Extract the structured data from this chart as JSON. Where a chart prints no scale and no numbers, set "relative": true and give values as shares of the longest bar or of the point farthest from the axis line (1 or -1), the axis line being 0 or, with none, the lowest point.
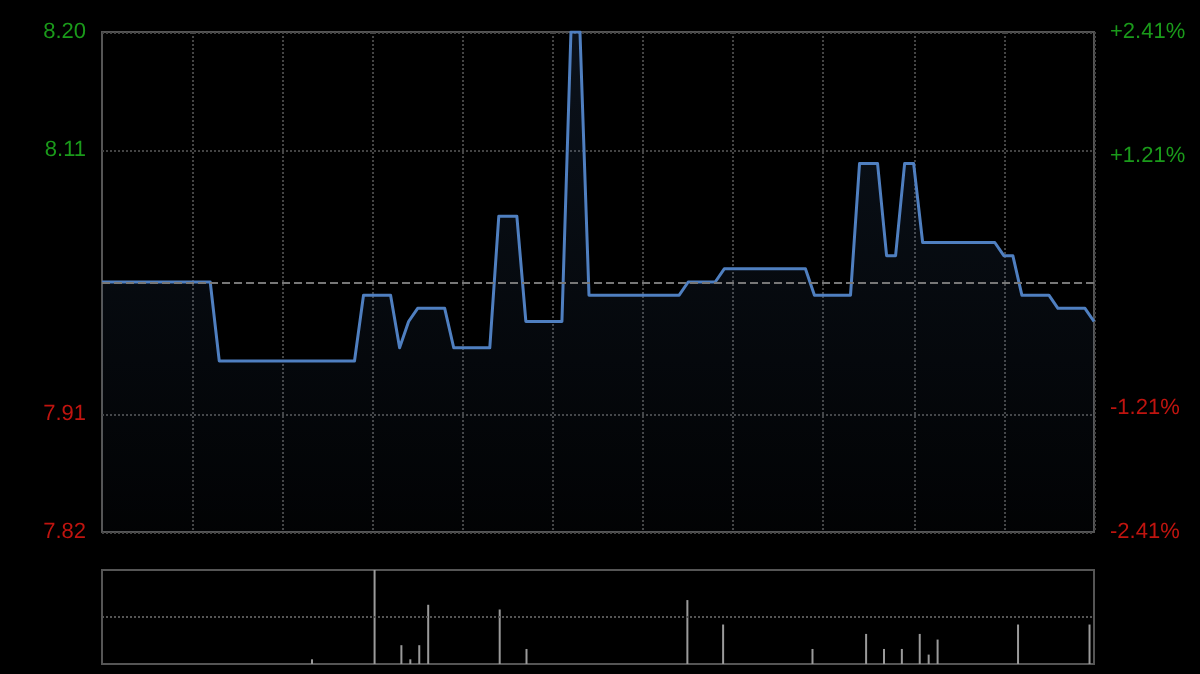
{
  "chart_data": [
    {
      "type": "area",
      "categories": [
        null,
        null,
        null,
        null,
        null,
        null,
        null,
        null,
        null,
        null,
        null,
        null,
        null,
        null,
        null,
        null,
        null,
        null,
        null,
        null,
        null,
        null,
        null,
        null,
        null,
        null,
        null,
        null,
        null,
        null,
        null,
        null,
        null,
        null,
        null,
        null,
        null,
        null,
        null,
        null,
        null,
        null,
        null,
        null,
        null,
        null,
        null,
        null,
        null,
        null,
        null,
        null,
        null,
        null,
        null,
        null,
        null,
        null,
        null,
        null,
        null,
        null,
        null,
        null,
        null,
        null,
        null,
        null,
        null,
        null,
        null,
        null,
        null,
        null,
        null,
        null,
        null,
        null,
        null,
        null,
        null,
        null,
        null,
        null,
        null,
        null,
        null,
        null,
        null,
        null,
        null,
        null,
        null,
        null,
        null,
        null,
        null,
        null,
        null,
        null,
        null,
        null,
        null,
        null,
        null,
        null,
        null,
        null,
        null,
        null,
        null
      ],
      "series": [
        {
          "color": "#4f7fc0",
          "values": [
            8.01,
            8.01,
            8.01,
            8.01,
            8.01,
            8.01,
            8.01,
            8.01,
            8.01,
            8.01,
            8.01,
            8.01,
            8.01,
            7.95,
            7.95,
            7.95,
            7.95,
            7.95,
            7.95,
            7.95,
            7.95,
            7.95,
            7.95,
            7.95,
            7.95,
            7.95,
            7.95,
            7.95,
            7.95,
            8.0,
            8.0,
            8.0,
            8.0,
            7.96,
            7.98,
            7.99,
            7.99,
            7.99,
            7.99,
            7.96,
            7.96,
            7.96,
            7.96,
            7.96,
            8.06,
            8.06,
            8.06,
            7.98,
            7.98,
            7.98,
            7.98,
            7.98,
            8.2,
            8.2,
            8.0,
            8.0,
            8.0,
            8.0,
            8.0,
            8.0,
            8.0,
            8.0,
            8.0,
            8.0,
            8.0,
            8.01,
            8.01,
            8.01,
            8.01,
            8.02,
            8.02,
            8.02,
            8.02,
            8.02,
            8.02,
            8.02,
            8.02,
            8.02,
            8.02,
            8.0,
            8.0,
            8.0,
            8.0,
            8.0,
            8.1,
            8.1,
            8.1,
            8.03,
            8.03,
            8.1,
            8.1,
            8.04,
            8.04,
            8.04,
            8.04,
            8.04,
            8.04,
            8.04,
            8.04,
            8.04,
            8.03,
            8.03,
            8.0,
            8.0,
            8.0,
            8.0,
            7.99,
            7.99,
            7.99,
            7.99,
            7.98
          ]
        }
      ],
      "ylim": [
        7.82,
        8.2
      ],
      "yticks": [
        7.82,
        7.91,
        8.11,
        {
          "value": 8.2,
          "label": "8.20"
        }
      ],
      "y2lim": [
        -2.41,
        2.41
      ],
      "y2ticks": [
        {
          "value": -2.41,
          "label": "-2.41%"
        },
        {
          "value": -1.21,
          "label": "-1.21%"
        },
        {
          "value": 1.21,
          "label": "+1.21%"
        },
        {
          "value": 2.41,
          "label": "+2.41%"
        }
      ],
      "ref_lines": [
        {
          "axis": "y",
          "value": 8.01,
          "line_style": "dashed"
        }
      ],
      "grid": true,
      "line_style": "solid"
    },
    {
      "type": "bar",
      "relative": true,
      "ref_lines": [
        {
          "axis": "y",
          "value": 0.5,
          "line_style": "dotted",
          "color": "#555555"
        }
      ],
      "categories": [
        null,
        null,
        null,
        null,
        null,
        null,
        null,
        null,
        null,
        null,
        null,
        null,
        null,
        null,
        null,
        null,
        null,
        null,
        null,
        null,
        null,
        null,
        null,
        null,
        null,
        null,
        null,
        null,
        null,
        null,
        null,
        null,
        null,
        null,
        null,
        null,
        null,
        null,
        null,
        null,
        null,
        null,
        null,
        null,
        null,
        null,
        null,
        null,
        null,
        null,
        null,
        null,
        null,
        null,
        null,
        null,
        null,
        null,
        null,
        null,
        null,
        null,
        null,
        null,
        null,
        null,
        null,
        null,
        null,
        null,
        null,
        null,
        null,
        null,
        null,
        null,
        null,
        null,
        null,
        null,
        null,
        null,
        null,
        null,
        null,
        null,
        null,
        null,
        null,
        null,
        null,
        null,
        null,
        null,
        null,
        null,
        null,
        null,
        null,
        null,
        null,
        null,
        null,
        null,
        null,
        null,
        null,
        null,
        null,
        null,
        null
      ],
      "series": [
        {
          "color": "#9a9a9a",
          "values": [
            null,
            null,
            null,
            null,
            null,
            null,
            null,
            null,
            null,
            null,
            null,
            null,
            null,
            null,
            null,
            null,
            null,
            null,
            null,
            null,
            null,
            null,
            null,
            0.05,
            null,
            null,
            null,
            null,
            null,
            null,
            1,
            null,
            null,
            0.2,
            0.05,
            0.2,
            0.63,
            null,
            null,
            null,
            null,
            null,
            null,
            null,
            0.58,
            null,
            null,
            0.16,
            null,
            null,
            null,
            null,
            null,
            null,
            null,
            null,
            null,
            null,
            null,
            null,
            null,
            null,
            null,
            null,
            null,
            0.68,
            null,
            null,
            null,
            0.42,
            null,
            null,
            null,
            null,
            null,
            null,
            null,
            null,
            null,
            0.16,
            null,
            null,
            null,
            null,
            null,
            0.32,
            null,
            0.16,
            null,
            0.16,
            null,
            0.32,
            0.1,
            0.26,
            null,
            null,
            null,
            null,
            null,
            null,
            null,
            null,
            0.42,
            null,
            null,
            null,
            null,
            null,
            null,
            null,
            0.42
          ]
        }
      ]
    }
  ]
}
